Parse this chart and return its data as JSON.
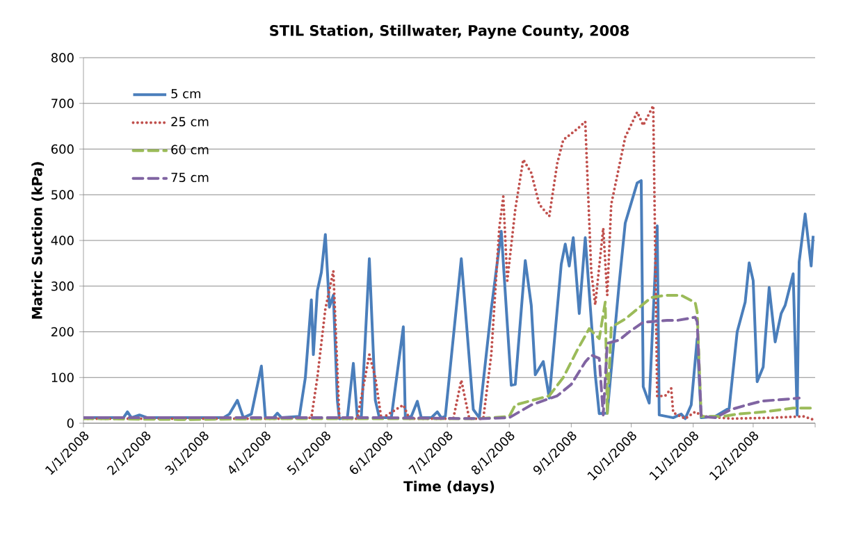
{
  "chart_data": {
    "type": "line",
    "title": "STIL Station, Stillwater, Payne County, 2008",
    "xlabel": "Time (days)",
    "ylabel": "Matric Suction (kPa)",
    "xlim": [
      "2008-01-01",
      "2009-01-01"
    ],
    "xticks": [
      {
        "value": "2008-01-01",
        "label": "1/1/2008"
      },
      {
        "value": "2008-02-01",
        "label": "2/1/2008"
      },
      {
        "value": "2008-03-01",
        "label": "3/1/2008"
      },
      {
        "value": "2008-04-01",
        "label": "4/1/2008"
      },
      {
        "value": "2008-05-01",
        "label": "5/1/2008"
      },
      {
        "value": "2008-06-01",
        "label": "6/1/2008"
      },
      {
        "value": "2008-07-01",
        "label": "7/1/2008"
      },
      {
        "value": "2008-08-01",
        "label": "8/1/2008"
      },
      {
        "value": "2008-09-01",
        "label": "9/1/2008"
      },
      {
        "value": "2008-10-01",
        "label": "10/1/2008"
      },
      {
        "value": "2008-11-01",
        "label": "11/1/2008"
      },
      {
        "value": "2008-12-01",
        "label": "12/1/2008"
      },
      {
        "value": "2009-01-01",
        "label": null
      }
    ],
    "ylim": [
      0,
      800
    ],
    "yticks": [
      0,
      100,
      200,
      300,
      400,
      500,
      600,
      700,
      800
    ],
    "grid": "y",
    "legend": "top left",
    "series": [
      {
        "name": "5 cm",
        "color": "#4a7ebb",
        "line_style": "solid",
        "x": [
          "2008-01-01",
          "2008-01-11",
          "2008-01-21",
          "2008-01-23",
          "2008-01-25",
          "2008-01-29",
          "2008-02-02",
          "2008-02-20",
          "2008-03-11",
          "2008-03-14",
          "2008-03-18",
          "2008-03-21",
          "2008-03-25",
          "2008-03-30",
          "2008-04-01",
          "2008-04-05",
          "2008-04-07",
          "2008-04-09",
          "2008-04-18",
          "2008-04-21",
          "2008-04-24",
          "2008-04-25",
          "2008-04-27",
          "2008-04-29",
          "2008-05-01",
          "2008-05-03",
          "2008-05-05",
          "2008-05-07",
          "2008-05-08",
          "2008-05-12",
          "2008-05-15",
          "2008-05-17",
          "2008-05-19",
          "2008-05-23",
          "2008-05-26",
          "2008-05-28",
          "2008-06-03",
          "2008-06-09",
          "2008-06-10",
          "2008-06-13",
          "2008-06-16",
          "2008-06-18",
          "2008-06-23",
          "2008-06-26",
          "2008-06-28",
          "2008-06-30",
          "2008-07-08",
          "2008-07-14",
          "2008-07-17",
          "2008-07-23",
          "2008-07-28",
          "2008-08-02",
          "2008-08-04",
          "2008-08-09",
          "2008-08-12",
          "2008-08-14",
          "2008-08-18",
          "2008-08-21",
          "2008-08-27",
          "2008-08-29",
          "2008-08-31",
          "2008-09-02",
          "2008-09-05",
          "2008-09-08",
          "2008-09-13",
          "2008-09-15",
          "2008-09-19",
          "2008-09-25",
          "2008-09-28",
          "2008-10-04",
          "2008-10-06",
          "2008-10-07",
          "2008-10-10",
          "2008-10-14",
          "2008-10-15",
          "2008-10-22",
          "2008-10-26",
          "2008-10-28",
          "2008-10-31",
          "2008-11-03",
          "2008-11-05",
          "2008-11-12",
          "2008-11-19",
          "2008-11-23",
          "2008-11-27",
          "2008-11-29",
          "2008-12-01",
          "2008-12-03",
          "2008-12-06",
          "2008-12-09",
          "2008-12-12",
          "2008-12-15",
          "2008-12-17",
          "2008-12-21",
          "2008-12-23",
          "2008-12-24",
          "2008-12-27",
          "2008-12-30",
          "2008-12-31"
        ],
        "values": [
          12,
          12,
          12,
          25,
          12,
          18,
          12,
          12,
          12,
          20,
          50,
          12,
          20,
          125,
          12,
          12,
          22,
          12,
          15,
          100,
          270,
          150,
          290,
          330,
          413,
          254,
          280,
          50,
          10,
          12,
          131,
          12,
          15,
          360,
          50,
          12,
          12,
          211,
          12,
          15,
          48,
          12,
          12,
          25,
          12,
          15,
          360,
          30,
          12,
          250,
          420,
          83,
          85,
          356,
          258,
          106,
          135,
          55,
          348,
          392,
          344,
          406,
          240,
          406,
          107,
          21,
          22,
          307,
          438,
          526,
          531,
          80,
          44,
          432,
          18,
          12,
          20,
          10,
          40,
          185,
          12,
          15,
          33,
          200,
          265,
          351,
          312,
          91,
          123,
          297,
          178,
          240,
          258,
          327,
          18,
          353,
          458,
          344,
          410
        ]
      },
      {
        "name": "25 cm",
        "color": "#c0504d",
        "line_style": "dotted",
        "x": [
          "2008-01-01",
          "2008-02-20",
          "2008-04-09",
          "2008-04-24",
          "2008-04-27",
          "2008-05-01",
          "2008-05-05",
          "2008-05-08",
          "2008-05-17",
          "2008-05-23",
          "2008-05-26",
          "2008-05-29",
          "2008-06-09",
          "2008-06-12",
          "2008-07-04",
          "2008-07-08",
          "2008-07-12",
          "2008-07-19",
          "2008-07-23",
          "2008-07-27",
          "2008-07-29",
          "2008-07-31",
          "2008-08-04",
          "2008-08-08",
          "2008-08-12",
          "2008-08-16",
          "2008-08-21",
          "2008-08-25",
          "2008-08-28",
          "2008-09-04",
          "2008-09-08",
          "2008-09-11",
          "2008-09-13",
          "2008-09-17",
          "2008-09-19",
          "2008-09-21",
          "2008-09-28",
          "2008-10-04",
          "2008-10-07",
          "2008-10-12",
          "2008-10-14",
          "2008-10-18",
          "2008-10-21",
          "2008-10-22",
          "2008-10-28",
          "2008-11-02",
          "2008-11-06",
          "2008-11-20",
          "2008-12-11",
          "2008-12-26",
          "2008-12-31"
        ],
        "values": [
          10,
          10,
          10,
          12,
          100,
          250,
          333,
          10,
          10,
          150,
          100,
          10,
          40,
          10,
          10,
          94,
          10,
          10,
          150,
          427,
          496,
          312,
          468,
          577,
          548,
          479,
          453,
          569,
          620,
          644,
          660,
          333,
          259,
          427,
          280,
          479,
          626,
          681,
          652,
          695,
          59,
          60,
          76,
          23,
          10,
          25,
          15,
          10,
          12,
          15,
          8
        ]
      },
      {
        "name": "60 cm",
        "color": "#9bbb59",
        "line_style": "dashed",
        "x": [
          "2008-01-01",
          "2008-02-20",
          "2008-04-09",
          "2008-05-30",
          "2008-07-17",
          "2008-08-01",
          "2008-08-04",
          "2008-08-21",
          "2008-08-28",
          "2008-09-04",
          "2008-09-10",
          "2008-09-15",
          "2008-09-18",
          "2008-09-19",
          "2008-09-21",
          "2008-09-28",
          "2008-10-11",
          "2008-10-18",
          "2008-10-26",
          "2008-11-02",
          "2008-11-03",
          "2008-11-05",
          "2008-11-16",
          "2008-11-23",
          "2008-12-07",
          "2008-12-21",
          "2008-12-31"
        ],
        "values": [
          10,
          8,
          10,
          10,
          10,
          15,
          40,
          60,
          100,
          160,
          207,
          185,
          265,
          20,
          210,
          228,
          275,
          280,
          280,
          264,
          243,
          15,
          15,
          20,
          25,
          33,
          33
        ]
      },
      {
        "name": "75 cm",
        "color": "#8064a2",
        "line_style": "dashed",
        "x": [
          "2008-01-01",
          "2008-02-20",
          "2008-04-09",
          "2008-05-30",
          "2008-07-17",
          "2008-08-01",
          "2008-08-12",
          "2008-08-25",
          "2008-09-01",
          "2008-09-08",
          "2008-09-11",
          "2008-09-15",
          "2008-09-17",
          "2008-09-19",
          "2008-09-25",
          "2008-09-30",
          "2008-10-07",
          "2008-10-19",
          "2008-10-24",
          "2008-11-02",
          "2008-11-03",
          "2008-11-05",
          "2008-11-12",
          "2008-11-20",
          "2008-11-27",
          "2008-12-05",
          "2008-12-10",
          "2008-12-19",
          "2008-12-24"
        ],
        "values": [
          12,
          12,
          12,
          12,
          10,
          12,
          40,
          60,
          85,
          134,
          149,
          142,
          18,
          175,
          182,
          200,
          221,
          225,
          225,
          232,
          222,
          15,
          12,
          30,
          39,
          48,
          50,
          53,
          55
        ]
      }
    ]
  }
}
